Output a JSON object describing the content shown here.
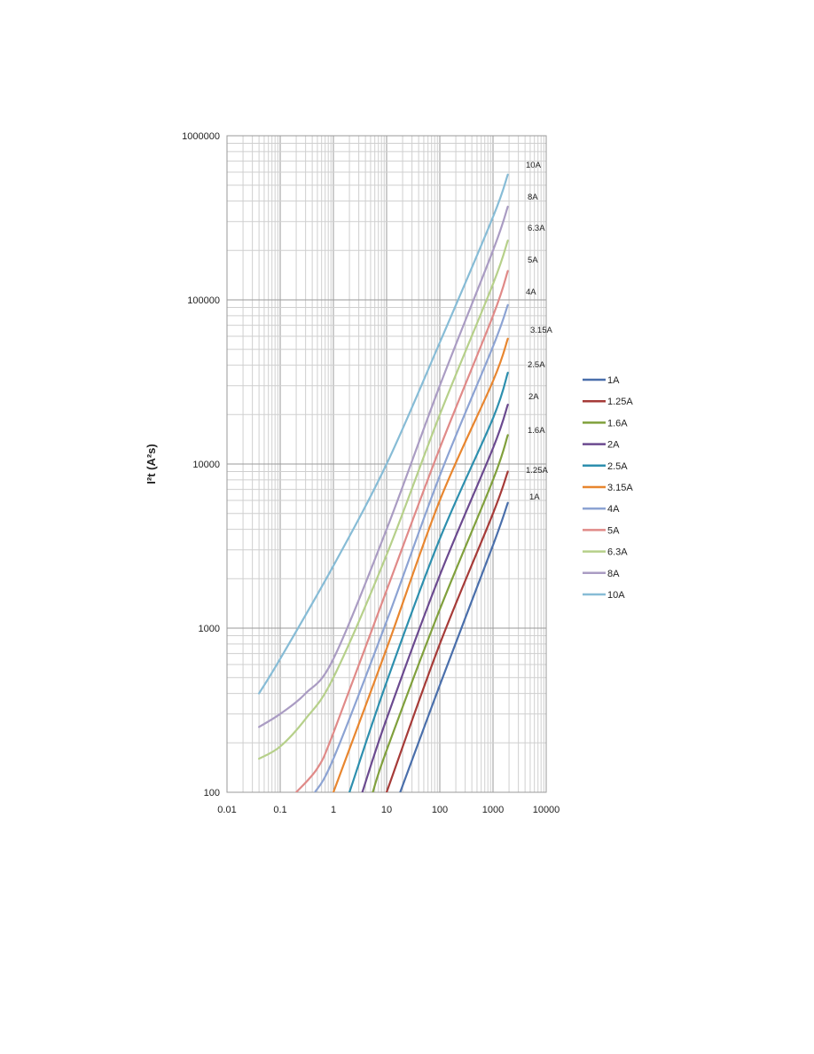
{
  "chart_data": {
    "type": "line",
    "title": "",
    "xlabel": "",
    "ylabel": "I²t (A²s)",
    "x_scale": "log",
    "y_scale": "log",
    "xlim": [
      0.01,
      10000
    ],
    "ylim": [
      100,
      1000000
    ],
    "grid": true,
    "legend_position": "right",
    "x_ticks": [
      "0.01",
      "0.1",
      "1",
      "10",
      "100",
      "1000",
      "10000"
    ],
    "y_ticks": [
      "100",
      "1000",
      "10000",
      "100000",
      "1000000"
    ],
    "series": [
      {
        "name": "1A",
        "end_label": "1A",
        "color": "#4a6fab",
        "x": [
          18,
          100,
          1000,
          1900
        ],
        "y": [
          100,
          450,
          3200,
          5800
        ]
      },
      {
        "name": "1.25A",
        "end_label": "1.25A",
        "color": "#a63b38",
        "x": [
          10,
          100,
          1000,
          1900
        ],
        "y": [
          100,
          800,
          5000,
          9000
        ]
      },
      {
        "name": "1.6A",
        "end_label": "1.6A",
        "color": "#80a03c",
        "x": [
          5.5,
          10,
          100,
          1000,
          1900
        ],
        "y": [
          100,
          180,
          1300,
          8000,
          15000
        ]
      },
      {
        "name": "2A",
        "end_label": "2A",
        "color": "#6b4a8f",
        "x": [
          3.5,
          10,
          100,
          1000,
          1900
        ],
        "y": [
          100,
          280,
          2100,
          12500,
          23000
        ]
      },
      {
        "name": "2.5A",
        "end_label": "2.5A",
        "color": "#2d8fae",
        "x": [
          2,
          10,
          100,
          1000,
          1900
        ],
        "y": [
          100,
          470,
          3500,
          19000,
          36000
        ]
      },
      {
        "name": "3.15A",
        "end_label": "3.15A",
        "color": "#e8862f",
        "x": [
          1,
          10,
          100,
          1000,
          1900
        ],
        "y": [
          100,
          750,
          6000,
          32000,
          58000
        ]
      },
      {
        "name": "4A",
        "end_label": "4A",
        "color": "#8ca3d3",
        "x": [
          0.45,
          1,
          10,
          100,
          1000,
          1900
        ],
        "y": [
          100,
          160,
          1100,
          8500,
          52000,
          93000
        ]
      },
      {
        "name": "5A",
        "end_label": "5A",
        "color": "#e08a88",
        "x": [
          0.2,
          0.5,
          1,
          10,
          100,
          1000,
          1900
        ],
        "y": [
          100,
          140,
          230,
          1700,
          12500,
          80000,
          150000
        ]
      },
      {
        "name": "6.3A",
        "end_label": "6.3A",
        "color": "#b6d08a",
        "x": [
          0.04,
          0.1,
          0.3,
          1,
          10,
          100,
          1000,
          1900
        ],
        "y": [
          160,
          190,
          280,
          500,
          2800,
          20000,
          125000,
          230000
        ]
      },
      {
        "name": "8A",
        "end_label": "8A",
        "color": "#aa9cc3",
        "x": [
          0.04,
          0.1,
          0.3,
          1,
          10,
          100,
          1000,
          1900
        ],
        "y": [
          250,
          300,
          400,
          650,
          4000,
          30000,
          200000,
          370000
        ]
      },
      {
        "name": "10A",
        "end_label": "10A",
        "color": "#87bcd6",
        "x": [
          0.04,
          0.1,
          1,
          10,
          100,
          1000,
          1900
        ],
        "y": [
          400,
          650,
          2400,
          10000,
          55000,
          320000,
          580000
        ]
      }
    ]
  }
}
